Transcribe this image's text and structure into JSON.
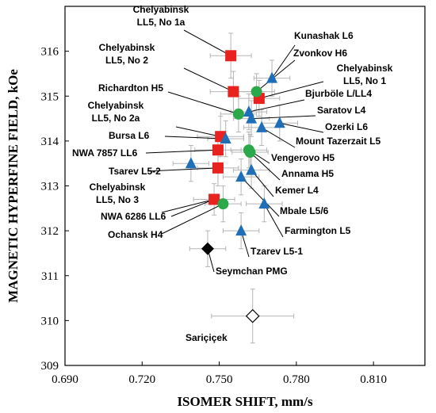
{
  "chart_data": {
    "type": "scatter",
    "xlabel": "ISOMER SHIFT, mm/s",
    "ylabel": "MAGNETIC HYPERFINE FIELD, kOe",
    "xlim": [
      0.69,
      0.83
    ],
    "ylim": [
      309,
      317
    ],
    "xticks": [
      "0.690",
      "0.720",
      "0.750",
      "0.780",
      "0.810"
    ],
    "xtick_values": [
      0.69,
      0.72,
      0.75,
      0.78,
      0.81
    ],
    "yticks": [
      "309",
      "310",
      "311",
      "312",
      "313",
      "314",
      "315",
      "316"
    ],
    "ytick_values": [
      309,
      310,
      311,
      312,
      313,
      314,
      315,
      316
    ],
    "grid": false,
    "series": [
      {
        "marker": "square",
        "color": "#e8221e",
        "points": [
          {
            "label": "Chelyabinsk LL5, No 1a",
            "x": 0.7545,
            "y": 315.9,
            "xerr": 0.008,
            "yerr": 0.5
          },
          {
            "label": "Chelyabinsk LL5, No 2",
            "x": 0.7555,
            "y": 315.1,
            "xerr": 0.009,
            "yerr": 0.45
          },
          {
            "label": "Chelyabinsk LL5, No 1",
            "x": 0.7655,
            "y": 314.95,
            "xerr": 0.008,
            "yerr": 0.4
          },
          {
            "label": "Chelyabinsk LL5, No 2a",
            "x": 0.7505,
            "y": 314.1,
            "xerr": 0.009,
            "yerr": 0.45
          },
          {
            "label": "NWA 7857 LL6",
            "x": 0.7495,
            "y": 313.8,
            "xerr": 0.009,
            "yerr": 0.4
          },
          {
            "label": "Tsarev L5-2",
            "x": 0.7495,
            "y": 313.4,
            "xerr": 0.008,
            "yerr": 0.4
          },
          {
            "label": "Chelyabinsk LL5, No 3",
            "x": 0.748,
            "y": 312.7,
            "xerr": 0.008,
            "yerr": 0.35
          }
        ]
      },
      {
        "marker": "triangle",
        "color": "#1e6fb8",
        "points": [
          {
            "label": "Kunashak L6",
            "x": 0.7705,
            "y": 315.4,
            "xerr": 0.007,
            "yerr": 0.4
          },
          {
            "label": "Bjurböle L/LL4",
            "x": 0.7615,
            "y": 314.65,
            "xerr": 0.007,
            "yerr": 0.4
          },
          {
            "label": "Saratov L4",
            "x": 0.7625,
            "y": 314.5,
            "xerr": 0.007,
            "yerr": 0.4
          },
          {
            "label": "Ozerki L6",
            "x": 0.7735,
            "y": 314.4,
            "xerr": 0.007,
            "yerr": 0.4
          },
          {
            "label": "Mount Tazerzait L5",
            "x": 0.7665,
            "y": 314.3,
            "xerr": 0.007,
            "yerr": 0.4
          },
          {
            "label": "Bursa L6",
            "x": 0.7525,
            "y": 314.05,
            "xerr": 0.007,
            "yerr": 0.4
          },
          {
            "label": "Tsarev L5-2 (L)",
            "x": 0.739,
            "y": 313.5,
            "xerr": 0.007,
            "yerr": 0.4
          },
          {
            "label": "Kemer L4",
            "x": 0.7625,
            "y": 313.35,
            "xerr": 0.007,
            "yerr": 0.4
          },
          {
            "label": "Mbale L5/6",
            "x": 0.7585,
            "y": 313.2,
            "xerr": 0.007,
            "yerr": 0.4
          },
          {
            "label": "Farmington L5",
            "x": 0.7675,
            "y": 312.6,
            "xerr": 0.007,
            "yerr": 0.4
          },
          {
            "label": "Tzarev L5-1",
            "x": 0.7585,
            "y": 312.0,
            "xerr": 0.007,
            "yerr": 0.4
          }
        ]
      },
      {
        "marker": "circle",
        "color": "#2aa84a",
        "points": [
          {
            "label": "Zvonkov H6",
            "x": 0.7645,
            "y": 315.1,
            "xerr": 0.007,
            "yerr": 0.4
          },
          {
            "label": "Richardton H5",
            "x": 0.7575,
            "y": 314.6,
            "xerr": 0.007,
            "yerr": 0.4
          },
          {
            "label": "Vengerovo H5",
            "x": 0.7615,
            "y": 313.8,
            "xerr": 0.007,
            "yerr": 0.4
          },
          {
            "label": "Annama H5",
            "x": 0.762,
            "y": 313.75,
            "xerr": 0.007,
            "yerr": 0.4
          },
          {
            "label": "Ochansk H4",
            "x": 0.7515,
            "y": 312.6,
            "xerr": 0.007,
            "yerr": 0.4
          }
        ]
      },
      {
        "marker": "diamond",
        "color": "#000000",
        "points": [
          {
            "label": "Seymchan PMG",
            "x": 0.7455,
            "y": 311.6,
            "xerr": 0.007,
            "yerr": 0.4
          }
        ]
      },
      {
        "marker": "diamond-open",
        "color": "#000000",
        "points": [
          {
            "label": "Sariçiçek",
            "x": 0.763,
            "y": 310.1,
            "xerr": 0.016,
            "yerr": 0.6
          }
        ]
      }
    ],
    "annotations": [
      {
        "lines": [
          "Chelyabinsk",
          "LL5, No 1a"
        ],
        "target": [
          0.7545,
          315.9
        ]
      },
      {
        "lines": [
          "Kunashak L6"
        ],
        "target": [
          0.7705,
          315.4
        ]
      },
      {
        "lines": [
          "Zvonkov H6"
        ],
        "target": [
          0.7645,
          315.1
        ]
      },
      {
        "lines": [
          "Chelyabinsk",
          "LL5, No 2"
        ],
        "target": [
          0.7555,
          315.1
        ]
      },
      {
        "lines": [
          "Chelyabinsk",
          "LL5, No 1"
        ],
        "target": [
          0.7655,
          314.95
        ]
      },
      {
        "lines": [
          "Richardton H5"
        ],
        "target": [
          0.7575,
          314.6
        ]
      },
      {
        "lines": [
          "Bjurböle L/LL4"
        ],
        "target": [
          0.7615,
          314.65
        ]
      },
      {
        "lines": [
          "Chelyabinsk",
          "LL5, No 2a"
        ],
        "target": [
          0.7505,
          314.1
        ]
      },
      {
        "lines": [
          "Saratov L4"
        ],
        "target": [
          0.7625,
          314.5
        ]
      },
      {
        "lines": [
          "Ozerki L6"
        ],
        "target": [
          0.7735,
          314.4
        ]
      },
      {
        "lines": [
          "Bursa L6"
        ],
        "target": [
          0.7525,
          314.05
        ]
      },
      {
        "lines": [
          "Mount Tazerzait L5"
        ],
        "target": [
          0.7665,
          314.3
        ]
      },
      {
        "lines": [
          "NWA 7857 LL6"
        ],
        "target": [
          0.7495,
          313.8
        ]
      },
      {
        "lines": [
          "Vengerovo H5"
        ],
        "target": [
          0.7615,
          313.8
        ]
      },
      {
        "lines": [
          "Tsarev L5-2"
        ],
        "target": [
          0.7495,
          313.4
        ]
      },
      {
        "lines": [
          "Annama H5"
        ],
        "target": [
          0.762,
          313.75
        ]
      },
      {
        "lines": [
          "Kemer L4"
        ],
        "target": [
          0.7625,
          313.35
        ]
      },
      {
        "lines": [
          "Chelyabinsk",
          "LL5, No 3"
        ],
        "target": [
          0.748,
          312.7
        ]
      },
      {
        "lines": [
          "Mbale L5/6"
        ],
        "target": [
          0.7585,
          313.2
        ]
      },
      {
        "lines": [
          "NWA 6286 LL6"
        ],
        "target": [
          0.748,
          312.7
        ]
      },
      {
        "lines": [
          "Farmington L5"
        ],
        "target": [
          0.7675,
          312.6
        ]
      },
      {
        "lines": [
          "Ochansk H4"
        ],
        "target": [
          0.7515,
          312.6
        ]
      },
      {
        "lines": [
          "Tzarev L5-1"
        ],
        "target": [
          0.7585,
          312.0
        ]
      },
      {
        "lines": [
          "Seymchan PMG"
        ],
        "target": [
          0.7455,
          311.6
        ]
      },
      {
        "lines": [
          "Sariçiçek"
        ],
        "target": [
          0.763,
          310.1
        ]
      }
    ]
  }
}
